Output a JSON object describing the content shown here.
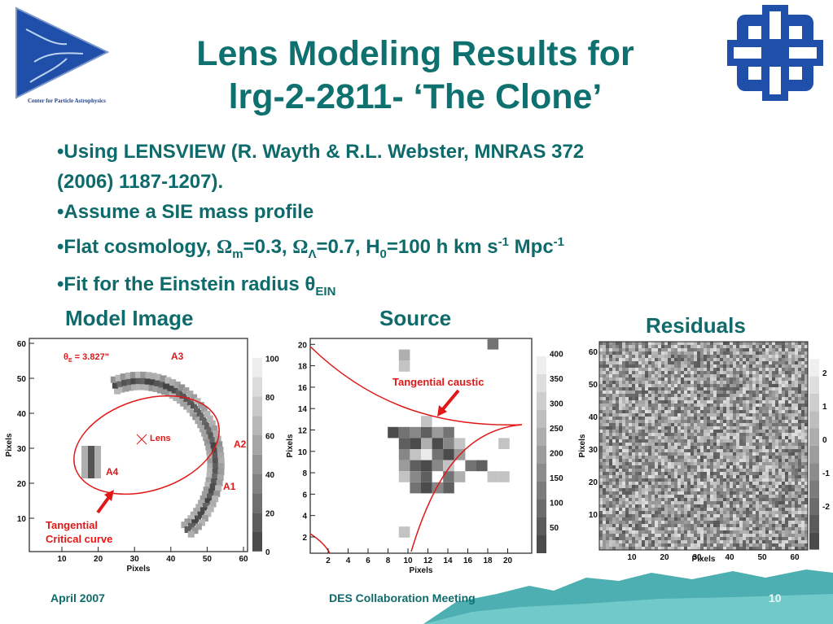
{
  "slide": {
    "title_line1": "Lens Modeling Results for",
    "title_line2": "lrg-2-2811- ‘The Clone’",
    "logo_text": "Center for Particle Astrophysics",
    "bullets": {
      "b1_line1": "•Using  LENSVIEW (R. Wayth & R.L. Webster, MNRAS 372",
      "b1_line2": "(2006) 1187-1207).",
      "b2": "•Assume a SIE mass profile",
      "b3_pre": "•Flat cosmology, ",
      "omega": "Ω",
      "m_sub": "m",
      "b3_mid1": "=0.3, ",
      "lambda_sub": "Λ",
      "b3_mid2": "=0.7, H",
      "zero_sub": "0",
      "b3_mid3": "=100 h km s",
      "exp1": "-1",
      "b3_mid4": " Mpc",
      "exp2": "-1",
      "b4_pre": "•Fit for the Einstein radius θ",
      "ein_sub": "EIN"
    },
    "panels": {
      "model_label": "Model Image",
      "source_label": "Source",
      "residuals_label": "Residuals"
    },
    "model_panel": {
      "theta_label": "θ",
      "theta_sub": "E",
      "theta_value": " = 3.827\"",
      "lens_label": "Lens",
      "images": [
        "A1",
        "A2",
        "A3",
        "A4"
      ],
      "annotation_line1": "Tangential",
      "annotation_line2": "Critical curve",
      "xlabel": "Pixels",
      "ylabel": "Pixels",
      "xticks": [
        "10",
        "20",
        "30",
        "40",
        "50",
        "60"
      ],
      "yticks": [
        "10",
        "20",
        "30",
        "40",
        "50",
        "60"
      ],
      "colorbar_ticks": [
        "0",
        "20",
        "40",
        "60",
        "80",
        "100"
      ]
    },
    "source_panel": {
      "annotation": "Tangential caustic",
      "xlabel": "Pixels",
      "ylabel": "Pixels",
      "xticks": [
        "2",
        "4",
        "6",
        "8",
        "10",
        "12",
        "14",
        "16",
        "18",
        "20"
      ],
      "yticks": [
        "2",
        "4",
        "6",
        "8",
        "10",
        "12",
        "14",
        "16",
        "18",
        "20"
      ],
      "colorbar_ticks": [
        "50",
        "100",
        "150",
        "200",
        "250",
        "300",
        "350",
        "400"
      ]
    },
    "residual_panel": {
      "xlabel": "Pixels",
      "ylabel": "Pixels",
      "xticks": [
        "10",
        "20",
        "30",
        "40",
        "50",
        "60"
      ],
      "yticks": [
        "10",
        "20",
        "30",
        "40",
        "50",
        "60"
      ],
      "colorbar_ticks": [
        "-2",
        "-1",
        "0",
        "1",
        "2"
      ]
    },
    "footer": {
      "date": "April 2007",
      "meeting": "DES Collaboration Meeting",
      "page": "10"
    },
    "colors": {
      "title": "#0f7070",
      "annotation": "#e01818",
      "logo_blue": "#1f4fa8"
    }
  }
}
